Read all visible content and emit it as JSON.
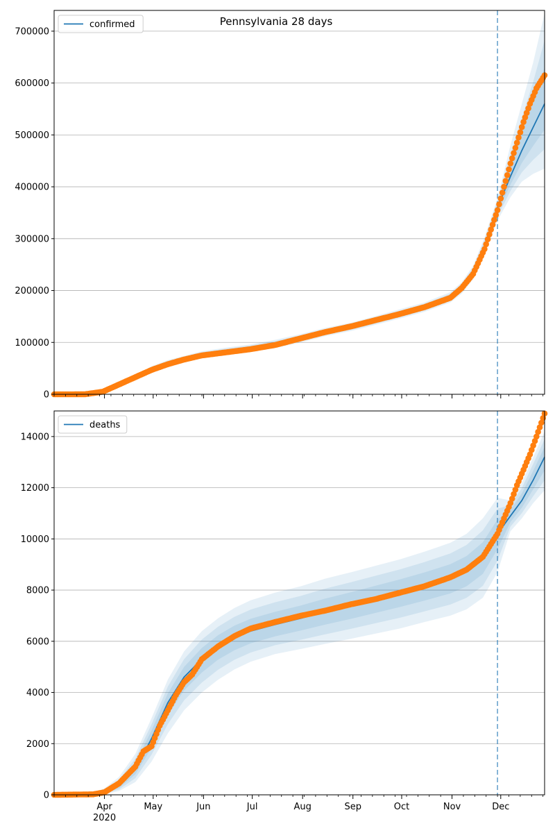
{
  "figure_title": "Pennsylvania 28 days",
  "colors": {
    "model_line": "#1f77b4",
    "observed_points": "#ff7f0e",
    "band": "#1f77b4",
    "grid": "#b0b0b0",
    "forecast_marker": "#1f77b4"
  },
  "x_axis": {
    "tick_labels": [
      "Apr",
      "May",
      "Jun",
      "Jul",
      "Aug",
      "Sep",
      "Oct",
      "Nov",
      "Dec"
    ],
    "year_label": "2020"
  },
  "chart_data": [
    {
      "type": "line",
      "title": "Pennsylvania 28 days",
      "xlabel": "",
      "ylabel": "",
      "x_range": [
        "2020-03-01",
        "2020-12-28"
      ],
      "ylim": [
        0,
        740000
      ],
      "yticks": [
        0,
        100000,
        200000,
        300000,
        400000,
        500000,
        600000,
        700000
      ],
      "grid": "horizontal",
      "legend_placement": "upper left",
      "forecast_start": "2020-11-29",
      "series": [
        {
          "name": "confirmed",
          "kind": "model",
          "x": [
            "2020-03-01",
            "2020-03-15",
            "2020-03-31",
            "2020-04-10",
            "2020-04-20",
            "2020-04-30",
            "2020-05-10",
            "2020-05-20",
            "2020-05-31",
            "2020-06-15",
            "2020-06-30",
            "2020-07-15",
            "2020-07-31",
            "2020-08-15",
            "2020-08-31",
            "2020-09-15",
            "2020-09-30",
            "2020-10-15",
            "2020-10-31",
            "2020-11-07",
            "2020-11-14",
            "2020-11-21",
            "2020-11-29",
            "2020-12-07",
            "2020-12-14",
            "2020-12-21",
            "2020-12-28"
          ],
          "values": [
            0,
            500,
            6000,
            20000,
            33000,
            48000,
            60000,
            68000,
            76000,
            83000,
            89000,
            97000,
            108000,
            120000,
            130000,
            142000,
            155000,
            168000,
            187000,
            205000,
            235000,
            285000,
            360000,
            420000,
            470000,
            515000,
            560000
          ],
          "band_90": [
            [
              0,
              0
            ],
            [
              300,
              700
            ],
            [
              4500,
              7500
            ],
            [
              17000,
              23000
            ],
            [
              29000,
              37000
            ],
            [
              43000,
              54000
            ],
            [
              54000,
              66000
            ],
            [
              61000,
              74000
            ],
            [
              69000,
              83000
            ],
            [
              76000,
              90000
            ],
            [
              82000,
              96000
            ],
            [
              89000,
              105000
            ],
            [
              100000,
              116000
            ],
            [
              112000,
              128000
            ],
            [
              122000,
              138000
            ],
            [
              134000,
              151000
            ],
            [
              146000,
              164000
            ],
            [
              159000,
              177000
            ],
            [
              177000,
              197000
            ],
            [
              194000,
              216000
            ],
            [
              222000,
              248000
            ],
            [
              268000,
              302000
            ],
            [
              335000,
              378000
            ],
            [
              380000,
              480000
            ],
            [
              410000,
              560000
            ],
            [
              425000,
              640000
            ],
            [
              435000,
              735000
            ]
          ]
        },
        {
          "name": "",
          "kind": "observed",
          "x": [
            "2020-03-01",
            "2020-03-20",
            "2020-03-31",
            "2020-04-10",
            "2020-04-20",
            "2020-04-30",
            "2020-05-10",
            "2020-05-20",
            "2020-05-31",
            "2020-06-15",
            "2020-06-30",
            "2020-07-15",
            "2020-07-31",
            "2020-08-15",
            "2020-08-31",
            "2020-09-15",
            "2020-09-30",
            "2020-10-15",
            "2020-10-31",
            "2020-11-07",
            "2020-11-14",
            "2020-11-21",
            "2020-11-29",
            "2020-12-03",
            "2020-12-07",
            "2020-12-11",
            "2020-12-15",
            "2020-12-19",
            "2020-12-23",
            "2020-12-28"
          ],
          "values": [
            0,
            100,
            5000,
            19000,
            33000,
            47000,
            58000,
            67000,
            75000,
            81000,
            87000,
            95000,
            108000,
            120000,
            131000,
            143000,
            155000,
            168000,
            186000,
            205000,
            232000,
            280000,
            355000,
            400000,
            445000,
            485000,
            525000,
            560000,
            590000,
            615000
          ]
        }
      ]
    },
    {
      "type": "line",
      "title": "",
      "xlabel": "",
      "ylabel": "",
      "x_range": [
        "2020-03-01",
        "2020-12-28"
      ],
      "ylim": [
        0,
        15000
      ],
      "yticks": [
        0,
        2000,
        4000,
        6000,
        8000,
        10000,
        12000,
        14000
      ],
      "grid": "horizontal",
      "legend_placement": "upper left",
      "forecast_start": "2020-11-29",
      "series": [
        {
          "name": "deaths",
          "kind": "model",
          "x": [
            "2020-03-01",
            "2020-03-25",
            "2020-04-01",
            "2020-04-10",
            "2020-04-20",
            "2020-04-30",
            "2020-05-10",
            "2020-05-20",
            "2020-05-31",
            "2020-06-10",
            "2020-06-20",
            "2020-06-30",
            "2020-07-15",
            "2020-07-31",
            "2020-08-15",
            "2020-08-31",
            "2020-09-15",
            "2020-09-30",
            "2020-10-15",
            "2020-10-31",
            "2020-11-10",
            "2020-11-20",
            "2020-11-29",
            "2020-12-07",
            "2020-12-14",
            "2020-12-21",
            "2020-12-28"
          ],
          "values": [
            0,
            20,
            100,
            350,
            1000,
            2200,
            3600,
            4600,
            5300,
            5800,
            6150,
            6400,
            6650,
            6900,
            7150,
            7400,
            7650,
            7900,
            8150,
            8450,
            8750,
            9250,
            10200,
            10900,
            11500,
            12300,
            13200
          ],
          "band_90": [
            [
              0,
              0
            ],
            [
              0,
              80
            ],
            [
              20,
              250
            ],
            [
              150,
              700
            ],
            [
              500,
              1600
            ],
            [
              1300,
              3000
            ],
            [
              2400,
              4500
            ],
            [
              3300,
              5600
            ],
            [
              4000,
              6400
            ],
            [
              4500,
              6900
            ],
            [
              4900,
              7300
            ],
            [
              5200,
              7600
            ],
            [
              5500,
              7900
            ],
            [
              5700,
              8150
            ],
            [
              5900,
              8450
            ],
            [
              6100,
              8700
            ],
            [
              6300,
              8950
            ],
            [
              6500,
              9200
            ],
            [
              6750,
              9500
            ],
            [
              7000,
              9850
            ],
            [
              7250,
              10200
            ],
            [
              7700,
              10800
            ],
            [
              8700,
              11600
            ],
            [
              10300,
              11500
            ],
            [
              10800,
              12200
            ],
            [
              11400,
              13200
            ],
            [
              11900,
              14200
            ]
          ]
        },
        {
          "name": "",
          "kind": "observed",
          "x": [
            "2020-03-01",
            "2020-03-25",
            "2020-04-01",
            "2020-04-10",
            "2020-04-20",
            "2020-04-25",
            "2020-04-30",
            "2020-05-05",
            "2020-05-10",
            "2020-05-15",
            "2020-05-20",
            "2020-05-25",
            "2020-05-31",
            "2020-06-10",
            "2020-06-20",
            "2020-06-30",
            "2020-07-15",
            "2020-07-31",
            "2020-08-15",
            "2020-08-31",
            "2020-09-15",
            "2020-09-30",
            "2020-10-15",
            "2020-10-31",
            "2020-11-10",
            "2020-11-20",
            "2020-11-29",
            "2020-12-03",
            "2020-12-07",
            "2020-12-11",
            "2020-12-15",
            "2020-12-19",
            "2020-12-23",
            "2020-12-28"
          ],
          "values": [
            0,
            20,
            100,
            450,
            1100,
            1700,
            1900,
            2700,
            3300,
            3900,
            4400,
            4700,
            5300,
            5800,
            6200,
            6500,
            6750,
            7000,
            7200,
            7450,
            7650,
            7900,
            8150,
            8500,
            8800,
            9300,
            10200,
            10800,
            11400,
            12100,
            12700,
            13300,
            14000,
            14900
          ]
        }
      ]
    }
  ]
}
